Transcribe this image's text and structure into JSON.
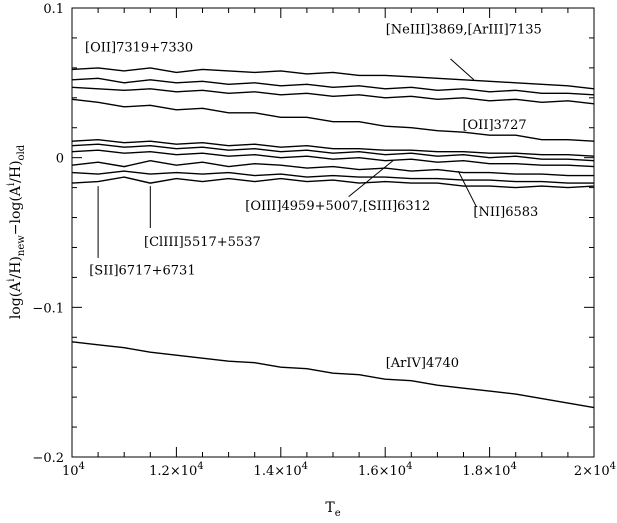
{
  "chart_data": {
    "type": "line",
    "xlabel": "T",
    "xlabel_sub": "e",
    "ylabel_parts": [
      "log(A",
      "i",
      "/H)",
      "new",
      "−log(A",
      "i",
      "/H)",
      "old"
    ],
    "xlim": [
      10000,
      20000
    ],
    "ylim": [
      -0.2,
      0.1
    ],
    "x_ticks": [
      {
        "value": 10000,
        "base": "10",
        "exp": "4"
      },
      {
        "value": 12000,
        "base": "1.2×10",
        "exp": "4"
      },
      {
        "value": 14000,
        "base": "1.4×10",
        "exp": "4"
      },
      {
        "value": 16000,
        "base": "1.6×10",
        "exp": "4"
      },
      {
        "value": 18000,
        "base": "1.8×10",
        "exp": "4"
      },
      {
        "value": 20000,
        "base": "2×10",
        "exp": "4"
      }
    ],
    "y_ticks": [
      {
        "value": 0.1,
        "label": "0.1"
      },
      {
        "value": 0,
        "label": "0"
      },
      {
        "value": -0.1,
        "label": "−0.1"
      },
      {
        "value": -0.2,
        "label": "−0.2"
      }
    ],
    "series": [
      {
        "x": [
          10000,
          10500,
          11000,
          11500,
          12000,
          12500,
          13000,
          13500,
          14000,
          14500,
          15000,
          15500,
          16000,
          16500,
          17000,
          17500,
          18000,
          18500,
          19000,
          19500,
          20000
        ],
        "y": [
          0.059,
          0.06,
          0.058,
          0.06,
          0.057,
          0.059,
          0.058,
          0.057,
          0.058,
          0.056,
          0.057,
          0.055,
          0.055,
          0.054,
          0.053,
          0.052,
          0.051,
          0.05,
          0.049,
          0.048,
          0.046
        ]
      },
      {
        "x": [
          10000,
          10500,
          11000,
          11500,
          12000,
          12500,
          13000,
          13500,
          14000,
          14500,
          15000,
          15500,
          16000,
          16500,
          17000,
          17500,
          18000,
          18500,
          19000,
          19500,
          20000
        ],
        "y": [
          0.052,
          0.053,
          0.05,
          0.052,
          0.05,
          0.051,
          0.049,
          0.05,
          0.048,
          0.049,
          0.047,
          0.048,
          0.046,
          0.047,
          0.045,
          0.046,
          0.044,
          0.045,
          0.043,
          0.043,
          0.042
        ]
      },
      {
        "x": [
          10000,
          10500,
          11000,
          11500,
          12000,
          12500,
          13000,
          13500,
          14000,
          14500,
          15000,
          15500,
          16000,
          16500,
          17000,
          17500,
          18000,
          18500,
          19000,
          19500,
          20000
        ],
        "y": [
          0.047,
          0.046,
          0.045,
          0.046,
          0.044,
          0.045,
          0.043,
          0.044,
          0.042,
          0.043,
          0.041,
          0.042,
          0.04,
          0.041,
          0.039,
          0.04,
          0.038,
          0.039,
          0.037,
          0.038,
          0.036
        ]
      },
      {
        "x": [
          10000,
          10500,
          11000,
          11500,
          12000,
          12500,
          13000,
          13500,
          14000,
          14500,
          15000,
          15500,
          16000,
          16500,
          17000,
          17500,
          18000,
          18500,
          19000,
          19500,
          20000
        ],
        "y": [
          0.039,
          0.037,
          0.034,
          0.035,
          0.032,
          0.033,
          0.03,
          0.03,
          0.027,
          0.027,
          0.024,
          0.024,
          0.021,
          0.02,
          0.018,
          0.017,
          0.015,
          0.015,
          0.012,
          0.012,
          0.011
        ]
      },
      {
        "x": [
          10000,
          10500,
          11000,
          11500,
          12000,
          12500,
          13000,
          13500,
          14000,
          14500,
          15000,
          15500,
          16000,
          16500,
          17000,
          17500,
          18000,
          18500,
          19000,
          19500,
          20000
        ],
        "y": [
          0.011,
          0.012,
          0.01,
          0.011,
          0.009,
          0.01,
          0.008,
          0.009,
          0.007,
          0.008,
          0.006,
          0.006,
          0.005,
          0.005,
          0.004,
          0.004,
          0.003,
          0.003,
          0.002,
          0.002,
          0.001
        ]
      },
      {
        "x": [
          10000,
          10500,
          11000,
          11500,
          12000,
          12500,
          13000,
          13500,
          14000,
          14500,
          15000,
          15500,
          16000,
          16500,
          17000,
          17500,
          18000,
          18500,
          19000,
          19500,
          20000
        ],
        "y": [
          0.008,
          0.009,
          0.007,
          0.008,
          0.006,
          0.007,
          0.005,
          0.006,
          0.004,
          0.005,
          0.003,
          0.004,
          0.002,
          0.003,
          0.001,
          0.002,
          0.0,
          0.001,
          -0.001,
          -0.001,
          -0.002
        ]
      },
      {
        "x": [
          10000,
          10500,
          11000,
          11500,
          12000,
          12500,
          13000,
          13500,
          14000,
          14500,
          15000,
          15500,
          16000,
          16500,
          17000,
          17500,
          18000,
          18500,
          19000,
          19500,
          20000
        ],
        "y": [
          0.004,
          0.005,
          0.003,
          0.004,
          0.002,
          0.003,
          0.001,
          0.002,
          0.0,
          0.001,
          -0.001,
          0.0,
          -0.002,
          -0.001,
          -0.003,
          -0.002,
          -0.004,
          -0.004,
          -0.005,
          -0.005,
          -0.006
        ]
      },
      {
        "x": [
          10000,
          10500,
          11000,
          11500,
          12000,
          12500,
          13000,
          13500,
          14000,
          14500,
          15000,
          15500,
          16000,
          16500,
          17000,
          17500,
          18000,
          18500,
          19000,
          19500,
          20000
        ],
        "y": [
          -0.005,
          -0.003,
          -0.006,
          -0.002,
          -0.005,
          -0.003,
          -0.006,
          -0.004,
          -0.005,
          -0.007,
          -0.006,
          -0.008,
          -0.007,
          -0.009,
          -0.008,
          -0.01,
          -0.01,
          -0.011,
          -0.011,
          -0.012,
          -0.012
        ]
      },
      {
        "x": [
          10000,
          10500,
          11000,
          11500,
          12000,
          12500,
          13000,
          13500,
          14000,
          14500,
          15000,
          15500,
          16000,
          16500,
          17000,
          17500,
          18000,
          18500,
          19000,
          19500,
          20000
        ],
        "y": [
          -0.01,
          -0.011,
          -0.009,
          -0.011,
          -0.01,
          -0.011,
          -0.01,
          -0.012,
          -0.011,
          -0.013,
          -0.012,
          -0.013,
          -0.013,
          -0.014,
          -0.014,
          -0.015,
          -0.015,
          -0.016,
          -0.016,
          -0.017,
          -0.017
        ]
      },
      {
        "x": [
          10000,
          10500,
          11000,
          11500,
          12000,
          12500,
          13000,
          13500,
          14000,
          14500,
          15000,
          15500,
          16000,
          16500,
          17000,
          17500,
          18000,
          18500,
          19000,
          19500,
          20000
        ],
        "y": [
          -0.017,
          -0.016,
          -0.013,
          -0.017,
          -0.014,
          -0.016,
          -0.014,
          -0.016,
          -0.014,
          -0.016,
          -0.015,
          -0.017,
          -0.016,
          -0.017,
          -0.017,
          -0.019,
          -0.019,
          -0.02,
          -0.019,
          -0.02,
          -0.019
        ]
      },
      {
        "x": [
          10000,
          10500,
          11000,
          11500,
          12000,
          12500,
          13000,
          13500,
          14000,
          14500,
          15000,
          15500,
          16000,
          16500,
          17000,
          17500,
          18000,
          18500,
          19000,
          19500,
          20000
        ],
        "y": [
          -0.123,
          -0.125,
          -0.127,
          -0.13,
          -0.132,
          -0.134,
          -0.136,
          -0.137,
          -0.14,
          -0.141,
          -0.144,
          -0.145,
          -0.148,
          -0.149,
          -0.152,
          -0.154,
          -0.156,
          -0.158,
          -0.161,
          -0.164,
          -0.167
        ]
      }
    ],
    "annotations": [
      {
        "text": "[OII]7319+7330",
        "x": 10250,
        "y": 0.071
      },
      {
        "text": "[NeIII]3869,[ArIII]7135",
        "x": 16010,
        "y": 0.083
      },
      {
        "text": "[OII]3727",
        "x": 17480,
        "y": 0.019
      },
      {
        "text": "[OIII]4959+5007,[SIII]6312",
        "x": 13320,
        "y": -0.035
      },
      {
        "text": "[NII]6583",
        "x": 17690,
        "y": -0.039
      },
      {
        "text": "[ClIII]5517+5537",
        "x": 11380,
        "y": -0.059
      },
      {
        "text": "[SII]6717+6731",
        "x": 10330,
        "y": -0.078
      },
      {
        "text": "[ArIV]4740",
        "x": 16010,
        "y": -0.14
      }
    ],
    "pointer_lines": [
      {
        "from": [
          10500,
          -0.067
        ],
        "to": [
          10500,
          -0.019
        ]
      },
      {
        "from": [
          11500,
          -0.047
        ],
        "to": [
          11500,
          -0.019
        ]
      },
      {
        "from": [
          15300,
          -0.026
        ],
        "to": [
          16150,
          -0.002
        ]
      },
      {
        "from": [
          17750,
          -0.033
        ],
        "to": [
          17400,
          -0.009
        ]
      },
      {
        "from": [
          17700,
          0.052
        ],
        "to": [
          17250,
          0.066
        ]
      }
    ]
  }
}
